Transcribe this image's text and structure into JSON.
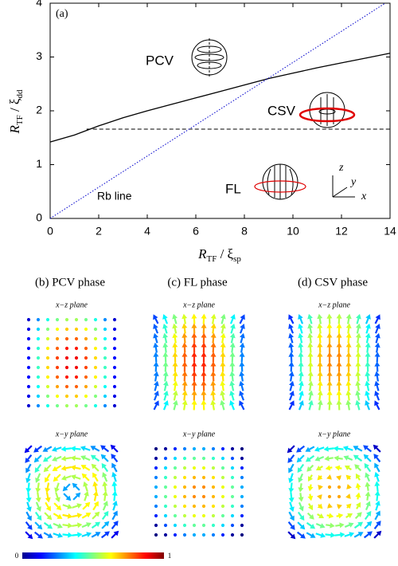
{
  "chart_data": {
    "type": "line",
    "title": "(a)",
    "x_label": [
      "R",
      "TF",
      " / ξ",
      "sp"
    ],
    "y_label": [
      "R",
      "TF",
      " / ξ",
      "dd"
    ],
    "xlim": [
      0,
      14
    ],
    "ylim": [
      0,
      4
    ],
    "xticks": [
      0,
      2,
      4,
      6,
      8,
      10,
      12,
      14
    ],
    "yticks": [
      0,
      1,
      2,
      3,
      4
    ],
    "series": [
      {
        "color": "#000000",
        "style": "solid",
        "x": [
          0,
          1,
          2,
          3,
          4,
          5,
          6,
          7,
          8,
          9,
          10,
          11,
          12,
          13,
          14
        ],
        "values": [
          1.42,
          1.55,
          1.72,
          1.87,
          2.0,
          2.12,
          2.24,
          2.36,
          2.48,
          2.6,
          2.7,
          2.8,
          2.89,
          2.98,
          3.07
        ]
      },
      {
        "color": "#000000",
        "style": "dashed",
        "x": [
          1.5,
          14
        ],
        "values": [
          1.66,
          1.66
        ]
      },
      {
        "color": "#0000cc",
        "style": "dotted",
        "x": [
          0,
          13.8
        ],
        "values": [
          0,
          4
        ]
      }
    ],
    "annotations": [
      "PCV",
      "CSV",
      "FL",
      "Rb line"
    ],
    "axes_labels": [
      "z",
      "y",
      "x"
    ]
  },
  "panels": [
    {
      "title": "(b) PCV phase",
      "planes": [
        "x−z plane",
        "x−y plane"
      ]
    },
    {
      "title": "(c) FL phase",
      "planes": [
        "x−z plane",
        "x−y plane"
      ]
    },
    {
      "title": "(d) CSV phase",
      "planes": [
        "x−z plane",
        "x−y plane"
      ]
    }
  ],
  "colorbar": {
    "ticks": [
      0,
      1
    ]
  }
}
